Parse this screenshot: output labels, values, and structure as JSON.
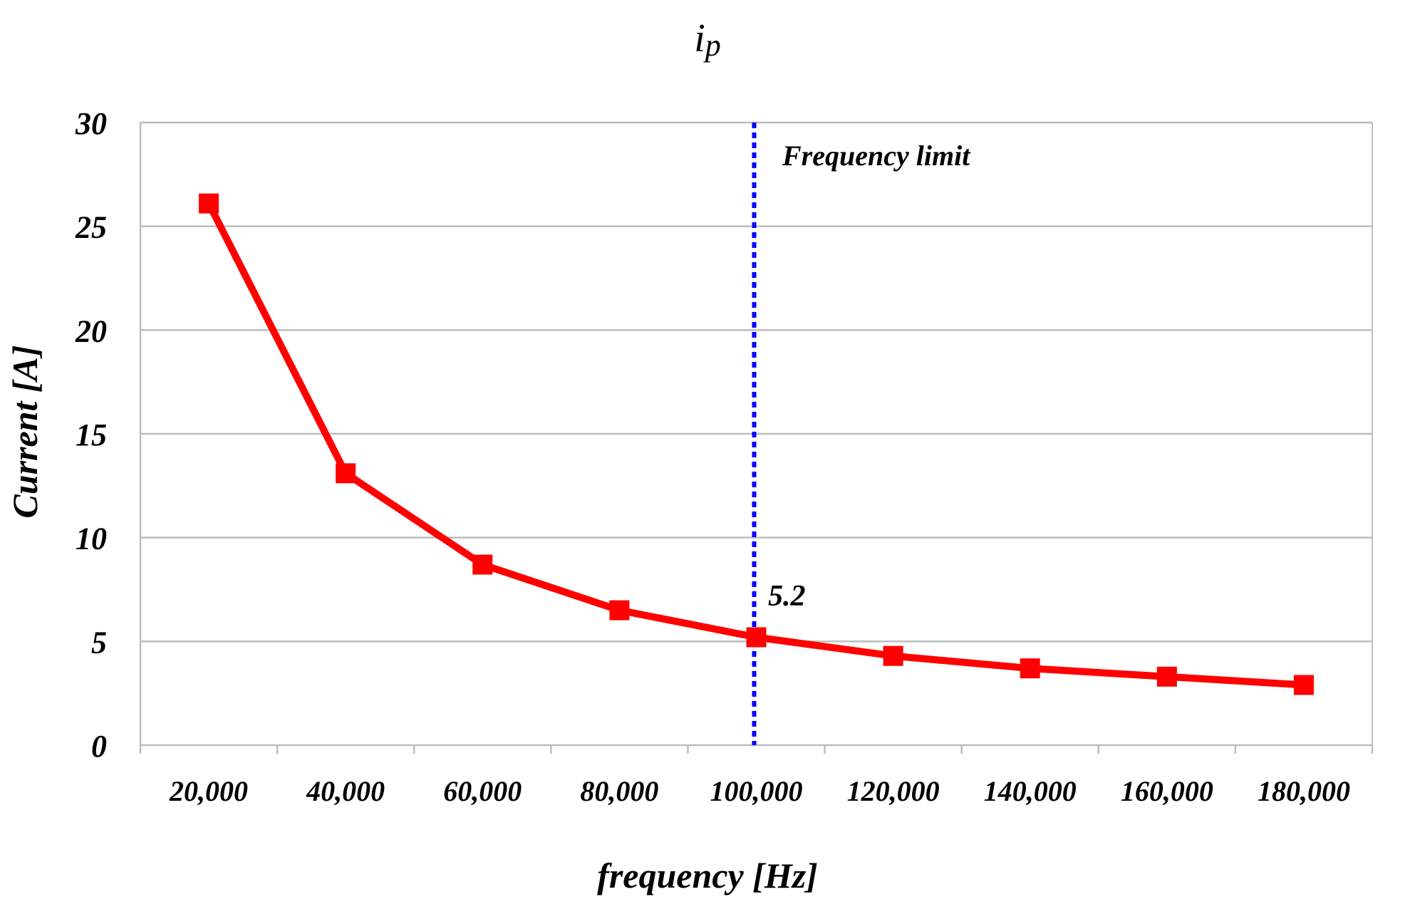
{
  "chart_data": {
    "type": "line",
    "title_main": "i",
    "title_sub": "p",
    "xlabel": "frequency [Hz]",
    "ylabel": "Current [A]",
    "ylim": [
      0,
      30
    ],
    "yticks": [
      "0",
      "5",
      "10",
      "15",
      "20",
      "25",
      "30"
    ],
    "grid": true,
    "categories": [
      "20,000",
      "40,000",
      "60,000",
      "80,000",
      "100,000",
      "120,000",
      "140,000",
      "160,000",
      "180,000"
    ],
    "series": [
      {
        "name": "ip",
        "color": "#ff0000",
        "marker": "square",
        "values": [
          26.1,
          13.1,
          8.7,
          6.5,
          5.2,
          4.3,
          3.7,
          3.3,
          2.9
        ]
      }
    ],
    "annotations": {
      "limit_label": "Frequency limit",
      "limit_category": "100,000",
      "limit_color": "#0000ff",
      "point_label": "5.2"
    }
  }
}
